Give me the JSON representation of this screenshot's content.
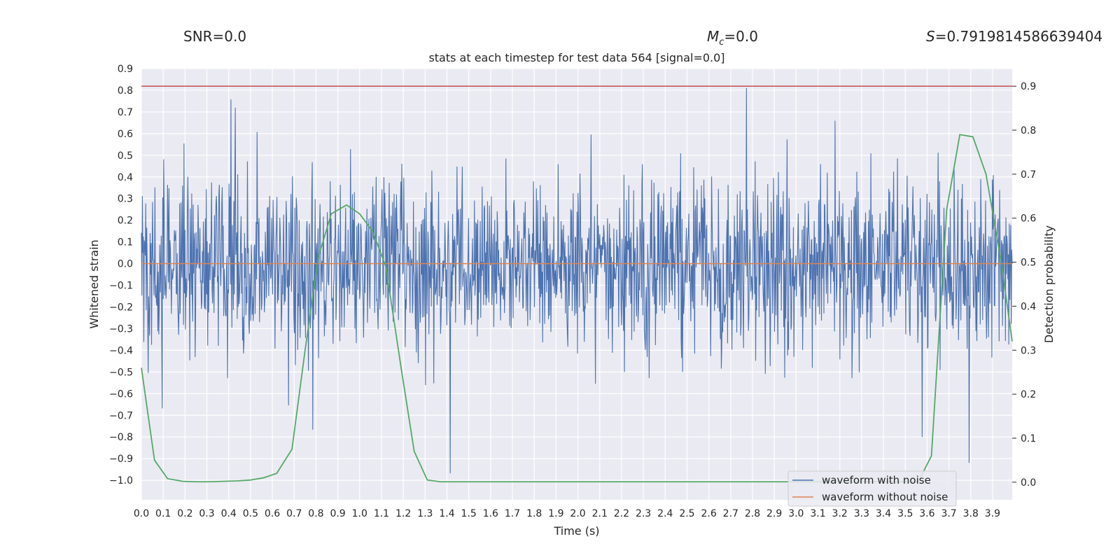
{
  "header": {
    "snr_text": "SNR=0.0",
    "mc_symbol": "M",
    "mc_subscript": "c",
    "mc_value": "=0.0",
    "s_symbol": "S",
    "s_value": "=0.7919814586639404"
  },
  "chart_data": {
    "type": "line",
    "title": "stats at each timestep for test data 564 [signal=0.0]",
    "xlabel": "Time (s)",
    "ylabel": "Whitened strain",
    "y2label": "Detection probability",
    "xlim": [
      0.0,
      3.99
    ],
    "ylim": [
      -1.09,
      0.9
    ],
    "y2lim": [
      -0.04,
      0.94
    ],
    "x_ticks": [
      "0.0",
      "0.1",
      "0.2",
      "0.3",
      "0.4",
      "0.5",
      "0.6",
      "0.7",
      "0.8",
      "0.9",
      "1.0",
      "1.1",
      "1.2",
      "1.3",
      "1.4",
      "1.5",
      "1.6",
      "1.7",
      "1.8",
      "1.9",
      "2.0",
      "2.1",
      "2.2",
      "2.3",
      "2.4",
      "2.5",
      "2.6",
      "2.7",
      "2.8",
      "2.9",
      "3.0",
      "3.1",
      "3.2",
      "3.3",
      "3.4",
      "3.5",
      "3.6",
      "3.7",
      "3.8",
      "3.9"
    ],
    "y_ticks": [
      "0.9",
      "0.8",
      "0.7",
      "0.6",
      "0.5",
      "0.4",
      "0.3",
      "0.2",
      "0.1",
      "0.0",
      "−0.1",
      "−0.2",
      "−0.3",
      "−0.4",
      "−0.5",
      "−0.6",
      "−0.7",
      "−0.8",
      "−0.9",
      "−1.0"
    ],
    "y2_ticks": [
      "0.9",
      "0.8",
      "0.7",
      "0.6",
      "0.5",
      "0.4",
      "0.3",
      "0.2",
      "0.1",
      "0.0"
    ],
    "grid": true,
    "legend_position": "bottom-right",
    "series": [
      {
        "name": "waveform with noise",
        "color": "#4c72b0",
        "axis": "left",
        "x_range": [
          0.0,
          3.99
        ],
        "y_range_approx": [
          -1.0,
          0.81
        ],
        "note": "dense noise trace"
      },
      {
        "name": "waveform without noise",
        "color": "#dd8452",
        "axis": "left",
        "x": [
          0.0,
          3.99
        ],
        "y": [
          0.0,
          0.0
        ]
      },
      {
        "color": "#55a868",
        "axis": "right",
        "x": [
          0.0,
          0.06,
          0.12,
          0.19,
          0.25,
          0.31,
          0.37,
          0.44,
          0.5,
          0.56,
          0.62,
          0.69,
          0.75,
          0.81,
          0.87,
          0.94,
          1.0,
          1.06,
          1.12,
          1.19,
          1.25,
          1.31,
          1.37,
          1.44,
          3.56,
          3.62,
          3.69,
          3.75,
          3.81,
          3.87,
          3.94,
          3.99
        ],
        "y": [
          0.26,
          0.05,
          0.008,
          0.002,
          0.001,
          0.001,
          0.002,
          0.003,
          0.005,
          0.01,
          0.02,
          0.075,
          0.3,
          0.51,
          0.61,
          0.63,
          0.61,
          0.57,
          0.49,
          0.26,
          0.07,
          0.005,
          0.001,
          0.001,
          0.001,
          0.06,
          0.62,
          0.79,
          0.785,
          0.7,
          0.5,
          0.32
        ]
      },
      {
        "color": "#c44e52",
        "axis": "right",
        "x": [
          0.0,
          3.99
        ],
        "y": [
          0.9,
          0.9
        ]
      }
    ]
  }
}
